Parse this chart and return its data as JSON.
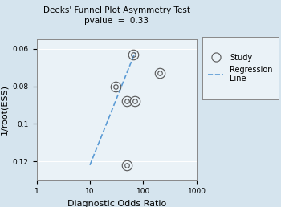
{
  "title": "Deeks' Funnel Plot Asymmetry Test",
  "subtitle": "pvalue  =  0.33",
  "xlabel": "Diagnostic Odds Ratio",
  "ylabel": "1/root(ESS)",
  "background_color": "#d5e4ee",
  "plot_bg_color": "#eaf2f7",
  "xlim_log": [
    1,
    1000
  ],
  "xticks": [
    1,
    10,
    100,
    1000
  ],
  "yticks": [
    0.06,
    0.08,
    0.1,
    0.12
  ],
  "ylim": [
    0.13,
    0.055
  ],
  "study_points_x": [
    65,
    30,
    50,
    70,
    200,
    50
  ],
  "study_points_y": [
    0.063,
    0.08,
    0.088,
    0.088,
    0.073,
    0.122
  ],
  "reg_line_x_start": 10,
  "reg_line_x_end": 70,
  "reg_line_y_start": 0.122,
  "reg_line_y_end": 0.062,
  "reg_color": "#5b9bd5",
  "point_color": "#555555",
  "title_fontsize": 7.5,
  "axis_label_fontsize": 8,
  "tick_fontsize": 6.5,
  "outer_marker_size": 9,
  "inner_marker_size": 4
}
